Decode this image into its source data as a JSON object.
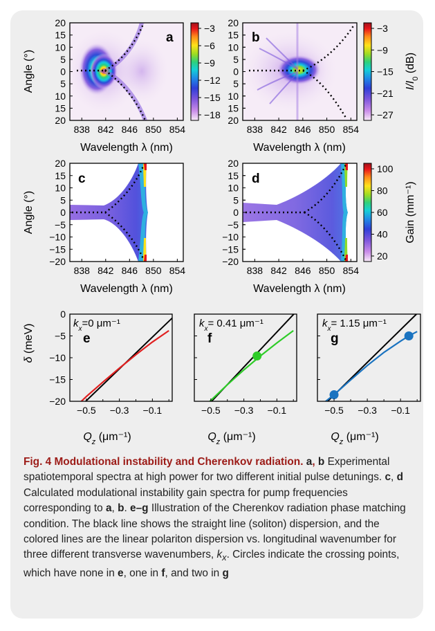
{
  "colors": {
    "frame_background": "#eeeeee",
    "caption_title": "#9c1b17",
    "colormap": [
      "#f7eaf7",
      "#d7a6ee",
      "#9f6fe2",
      "#5d49d3",
      "#2e3fd8",
      "#1f7fe6",
      "#13c8df",
      "#2fd07a",
      "#8fdc2a",
      "#ffe21a",
      "#ff7b1a",
      "#e8151a",
      "#a0121a"
    ],
    "kx_0": "#e02020",
    "kx_041": "#2ecc28",
    "kx_115": "#1a73c0"
  },
  "panels": {
    "a": {
      "label": "a",
      "ylabel": "Angle (°)",
      "xlabel": "Wavelength λ (nm)",
      "xticks": [
        "838",
        "842",
        "846",
        "850",
        "854"
      ],
      "yticks": [
        "20",
        "15",
        "10",
        "5",
        "0",
        "5",
        "10",
        "15",
        "20"
      ]
    },
    "b": {
      "label": "b",
      "xlabel": "Wavelength λ (nm)",
      "xticks": [
        "838",
        "842",
        "846",
        "850",
        "854"
      ],
      "yticks": [
        "20",
        "15",
        "10",
        "5",
        "0",
        "5",
        "10",
        "15",
        "20"
      ]
    },
    "c": {
      "label": "c",
      "ylabel": "Angle (°)",
      "xlabel": "Wavelength λ (nm)",
      "xticks": [
        "838",
        "842",
        "846",
        "850",
        "854"
      ],
      "yticks": [
        "20",
        "15",
        "10",
        "5",
        "0",
        "−5",
        "−10",
        "−15",
        "−20"
      ]
    },
    "d": {
      "label": "d",
      "xlabel": "Wavelength λ (nm)",
      "xticks": [
        "838",
        "842",
        "846",
        "850",
        "854"
      ],
      "yticks": [
        "20",
        "15",
        "10",
        "5",
        "0",
        "−5",
        "−10",
        "−15",
        "−20"
      ]
    },
    "e": {
      "label": "e",
      "ylabel": "δ (meV)",
      "xlabel_var": "Q",
      "xlabel_sub": "z",
      "xlabel_unit": " (μm⁻¹)",
      "kx_var": "k",
      "kx_sub": "x",
      "kx_value": "=0 μm⁻¹",
      "xticks": [
        "−0.5",
        "−0.3",
        "−0.1"
      ],
      "yticks": [
        "0",
        "−5",
        "−10",
        "−15",
        "−20"
      ]
    },
    "f": {
      "label": "f",
      "xlabel_var": "Q",
      "xlabel_sub": "z",
      "xlabel_unit": " (μm⁻¹)",
      "kx_var": "k",
      "kx_sub": "x",
      "kx_value": "= 0.41 μm⁻¹",
      "xticks": [
        "−0.5",
        "−0.3",
        "−0.1"
      ]
    },
    "g": {
      "label": "g",
      "xlabel_var": "Q",
      "xlabel_sub": "z",
      "xlabel_unit": " (μm⁻¹)",
      "kx_var": "k",
      "kx_sub": "x",
      "kx_value": "= 1.15 μm⁻¹",
      "xticks": [
        "−0.5",
        "−0.3",
        "−0.1"
      ]
    }
  },
  "colorbars": {
    "ab_left": {
      "ticks": [
        "−3",
        "−6",
        "−9",
        "−12",
        "−15",
        "−18"
      ]
    },
    "ab_right": {
      "ticks": [
        "−3",
        "−9",
        "−15",
        "−21",
        "−27"
      ],
      "label": "I/I₀ (dB)",
      "label_var": "I/I",
      "label_sub": "0",
      "label_unit": " (dB)"
    },
    "cd": {
      "ticks": [
        "100",
        "80",
        "60",
        "40",
        "20"
      ],
      "label": "Gain (mm⁻¹)"
    }
  },
  "chart_data": [
    {
      "type": "heatmap",
      "panel": "a",
      "title": "",
      "xlabel": "Wavelength λ (nm)",
      "ylabel": "Angle (°)",
      "xlim": [
        836,
        855
      ],
      "ylim": [
        -20,
        20
      ],
      "colorbar_range_dB": [
        -20,
        0
      ],
      "note_values": "intensity spot peak near 841 nm at 0°"
    },
    {
      "type": "heatmap",
      "panel": "b",
      "title": "",
      "xlabel": "Wavelength λ (nm)",
      "xlim": [
        836,
        855
      ],
      "ylim": [
        -20,
        20
      ],
      "colorbar_range_dB": [
        -30,
        0
      ],
      "colorbar_label": "I/I0 (dB)"
    },
    {
      "type": "heatmap",
      "panel": "c",
      "xlabel": "Wavelength λ (nm)",
      "ylabel": "Angle (°)",
      "xlim": [
        836,
        855
      ],
      "ylim": [
        -20,
        20
      ],
      "colorbar_range": [
        0,
        100
      ],
      "colorbar_label": "Gain (mm−1)"
    },
    {
      "type": "heatmap",
      "panel": "d",
      "xlabel": "Wavelength λ (nm)",
      "xlim": [
        836,
        855
      ],
      "ylim": [
        -20,
        20
      ],
      "colorbar_range": [
        0,
        100
      ],
      "colorbar_label": "Gain (mm−1)"
    },
    {
      "type": "line",
      "panel": "e",
      "xlabel": "Qz (μm−1)",
      "ylabel": "δ (meV)",
      "xlim": [
        -0.6,
        0.02
      ],
      "ylim": [
        -20,
        0
      ],
      "series": [
        {
          "x": [
            -0.6,
            0.02
          ],
          "y": [
            -23.5,
            -0.9
          ]
        },
        {
          "x": [
            -0.6,
            -0.5,
            -0.4,
            -0.3,
            -0.2,
            -0.1,
            0.0
          ],
          "y": [
            -22.5,
            -18.9,
            -15.6,
            -12.4,
            -9.3,
            -6.4,
            -3.8
          ]
        }
      ],
      "crossings": []
    },
    {
      "type": "line",
      "panel": "f",
      "xlabel": "Qz (μm−1)",
      "xlim": [
        -0.6,
        0.02
      ],
      "ylim": [
        -20,
        0
      ],
      "series": [
        {
          "x": [
            -0.6,
            0.02
          ],
          "y": [
            -24.2,
            0.7
          ]
        },
        {
          "x": [
            -0.6,
            -0.5,
            -0.4,
            -0.3,
            -0.2,
            -0.1,
            0.0
          ],
          "y": [
            -23.5,
            -19.8,
            -16.2,
            -12.8,
            -9.6,
            -6.6,
            -3.8
          ]
        }
      ],
      "crossings": [
        {
          "x": -0.22,
          "y": -9.6
        }
      ]
    },
    {
      "type": "line",
      "panel": "g",
      "xlabel": "Qz (μm−1)",
      "xlim": [
        -0.6,
        0.02
      ],
      "ylim": [
        -20,
        0
      ],
      "series": [
        {
          "x": [
            -0.6,
            0.02
          ],
          "y": [
            -22.3,
            0.9
          ]
        },
        {
          "x": [
            -0.6,
            -0.5,
            -0.4,
            -0.3,
            -0.2,
            -0.1,
            -0.05,
            0.0
          ],
          "y": [
            -21.5,
            -18.5,
            -15.1,
            -11.8,
            -8.8,
            -6.2,
            -5.0,
            -4.0
          ]
        }
      ],
      "crossings": [
        {
          "x": -0.5,
          "y": -18.5
        },
        {
          "x": -0.05,
          "y": -5.0
        }
      ]
    }
  ],
  "caption": {
    "title": "Fig. 4 Modulational instability and Cherenkov radiation.",
    "p1_bold_a": "a",
    "p1_comma": ", ",
    "p1_bold_b": "b",
    "p1_text": " Experimental spatiotemporal spectra at high power for two different initial pulse detunings. ",
    "p2_bold_c": "c",
    "p2_comma": ", ",
    "p2_bold_d": "d",
    "p2_text": " Calculated modulational instability gain spectra for pump frequencies corresponding to ",
    "p2_bold_a2": "a",
    "p2_comma2": ", ",
    "p2_bold_b2": "b",
    "p2_dot": ". ",
    "p3_bold_eg": "e–g",
    "p3_text": " Illustration of the Cherenkov radiation phase matching condition. The black line shows the straight line (soliton) dispersion, and the colored lines are the linear polariton dispersion vs. longitudinal wavenumber for three different transverse wavenumbers, ",
    "p3_kx_var": "k",
    "p3_kx_sub": "x",
    "p3_text2": ". Circles indicate the crossing points, which have none in ",
    "p3_bold_e": "e",
    "p3_text3": ", one in ",
    "p3_bold_f": "f",
    "p3_text4": ", and two in ",
    "p3_bold_g": "g"
  }
}
